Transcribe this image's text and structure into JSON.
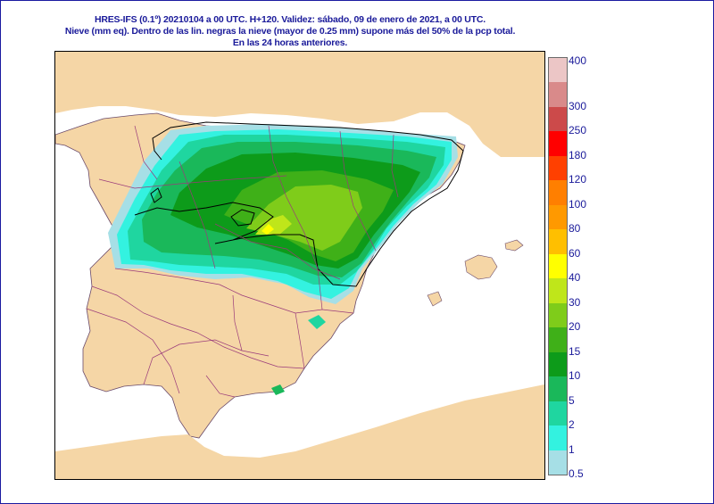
{
  "title": {
    "line1": "HRES-IFS (0.1º) 20210104 a 00 UTC.  H+120. Validez: sábado, 09 de enero de 2021,  a 00 UTC.",
    "line2": "Nieve (mm eq). Dentro de las lin. negras la nieve (mayor de 0.25 mm) supone más del 50% de la pcp total.",
    "line3": "En las 24 horas anteriores."
  },
  "legend": {
    "levels": [
      {
        "label": "0.5",
        "color": "#a6dfe6"
      },
      {
        "label": "1",
        "color": "#33f2e0"
      },
      {
        "label": "2",
        "color": "#1fd6a0"
      },
      {
        "label": "5",
        "color": "#1ab85a"
      },
      {
        "label": "10",
        "color": "#0d9b1a"
      },
      {
        "label": "15",
        "color": "#3fb018"
      },
      {
        "label": "20",
        "color": "#7fcc1a"
      },
      {
        "label": "30",
        "color": "#bfe61a"
      },
      {
        "label": "40",
        "color": "#ffff00"
      },
      {
        "label": "60",
        "color": "#ffbf00"
      },
      {
        "label": "80",
        "color": "#ff9900"
      },
      {
        "label": "100",
        "color": "#ff7f00"
      },
      {
        "label": "120",
        "color": "#ff4000"
      },
      {
        "label": "180",
        "color": "#ff0000"
      },
      {
        "label": "250",
        "color": "#cc4a4a"
      },
      {
        "label": "300",
        "color": "#d98a8a"
      },
      {
        "label": "400",
        "color": "#ecc6c6"
      }
    ]
  },
  "map": {
    "land_color": "#f5d6a6",
    "sea_color": "#ffffff",
    "border_color": "#9a3a7a"
  }
}
